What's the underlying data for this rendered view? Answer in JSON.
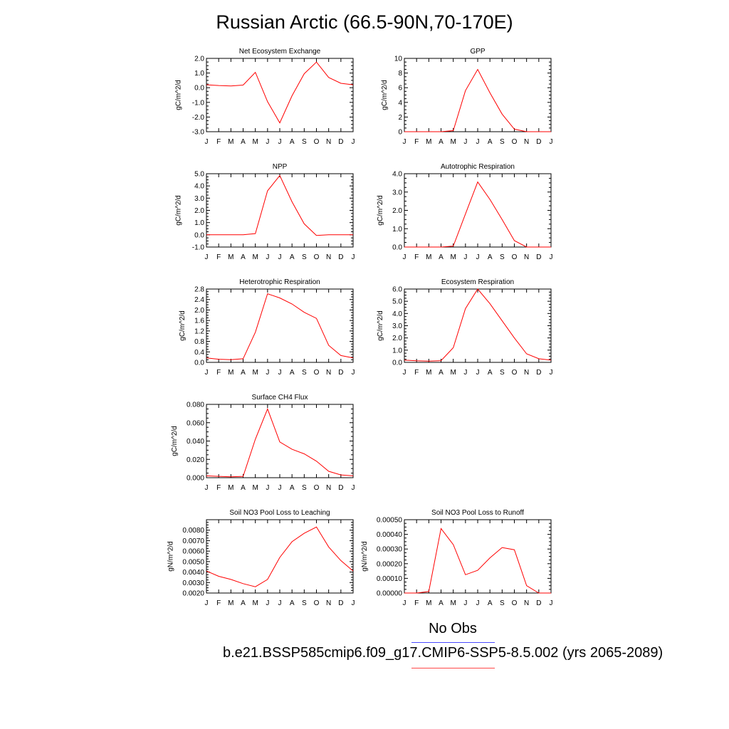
{
  "page_title": "Russian Arctic (66.5-90N,70-170E)",
  "legend": [
    {
      "label": "No Obs",
      "color": "#4a4aff"
    },
    {
      "label": "",
      "color": "#ff4a4a"
    }
  ],
  "case_label": "b.e21.BSSP585cmip6.f09_g17.CMIP6-SSP5-8.5.002 (yrs 2065-2089)",
  "series_color": "#ff0000",
  "chart_data": [
    {
      "type": "line",
      "title": "Net Ecosystem Exchange",
      "ylabel": "gC/m^2/d",
      "categories": [
        "J",
        "F",
        "M",
        "A",
        "M",
        "J",
        "J",
        "A",
        "S",
        "O",
        "N",
        "D",
        "J"
      ],
      "ylim": [
        -3.0,
        2.0
      ],
      "yticks": [
        "-3.0",
        "-2.0",
        "-1.0",
        "0.0",
        "1.0",
        "2.0"
      ],
      "values": [
        0.2,
        0.15,
        0.12,
        0.18,
        1.05,
        -0.95,
        -2.4,
        -0.55,
        0.95,
        1.75,
        0.7,
        0.3,
        0.2
      ]
    },
    {
      "type": "line",
      "title": "GPP",
      "ylabel": "gC/m^2/d",
      "categories": [
        "J",
        "F",
        "M",
        "A",
        "M",
        "J",
        "J",
        "A",
        "S",
        "O",
        "N",
        "D",
        "J"
      ],
      "ylim": [
        0,
        10
      ],
      "yticks": [
        "0",
        "2",
        "4",
        "6",
        "8",
        "10"
      ],
      "values": [
        0.0,
        0.0,
        0.0,
        0.0,
        0.15,
        5.6,
        8.5,
        5.3,
        2.4,
        0.35,
        0.0,
        0.0,
        0.0
      ]
    },
    {
      "type": "line",
      "title": "NPP",
      "ylabel": "gC/m^2/d",
      "categories": [
        "J",
        "F",
        "M",
        "A",
        "M",
        "J",
        "J",
        "A",
        "S",
        "O",
        "N",
        "D",
        "J"
      ],
      "ylim": [
        -1.0,
        5.0
      ],
      "yticks": [
        "-1.0",
        "0.0",
        "1.0",
        "2.0",
        "3.0",
        "4.0",
        "5.0"
      ],
      "values": [
        0.0,
        0.0,
        0.0,
        0.0,
        0.1,
        3.6,
        4.85,
        2.7,
        0.9,
        -0.05,
        0.0,
        0.0,
        0.0
      ]
    },
    {
      "type": "line",
      "title": "Autotrophic Respiration",
      "ylabel": "gC/m^2/d",
      "categories": [
        "J",
        "F",
        "M",
        "A",
        "M",
        "J",
        "J",
        "A",
        "S",
        "O",
        "N",
        "D",
        "J"
      ],
      "ylim": [
        0.0,
        4.0
      ],
      "yticks": [
        "0.0",
        "1.0",
        "2.0",
        "3.0",
        "4.0"
      ],
      "values": [
        0.0,
        0.0,
        0.0,
        0.0,
        0.05,
        1.8,
        3.55,
        2.6,
        1.5,
        0.35,
        0.0,
        0.0,
        0.0
      ]
    },
    {
      "type": "line",
      "title": "Heterotrophic Respiration",
      "ylabel": "gC/m^2/d",
      "categories": [
        "J",
        "F",
        "M",
        "A",
        "M",
        "J",
        "J",
        "A",
        "S",
        "O",
        "N",
        "D",
        "J"
      ],
      "ylim": [
        0.0,
        2.8
      ],
      "yticks": [
        "0.0",
        "0.4",
        "0.8",
        "1.2",
        "1.6",
        "2.0",
        "2.4",
        "2.8"
      ],
      "values": [
        0.17,
        0.12,
        0.1,
        0.14,
        1.15,
        2.62,
        2.46,
        2.23,
        1.91,
        1.68,
        0.65,
        0.26,
        0.17
      ]
    },
    {
      "type": "line",
      "title": "Ecosystem Respiration",
      "ylabel": "gC/m^2/d",
      "categories": [
        "J",
        "F",
        "M",
        "A",
        "M",
        "J",
        "J",
        "A",
        "S",
        "O",
        "N",
        "D",
        "J"
      ],
      "ylim": [
        0.0,
        6.0
      ],
      "yticks": [
        "0.0",
        "1.0",
        "2.0",
        "3.0",
        "4.0",
        "5.0",
        "6.0"
      ],
      "values": [
        0.18,
        0.13,
        0.1,
        0.14,
        1.2,
        4.4,
        6.0,
        4.8,
        3.4,
        2.0,
        0.7,
        0.3,
        0.18
      ]
    },
    {
      "type": "line",
      "title": "Surface CH4 Flux",
      "ylabel": "gC/m^2/d",
      "categories": [
        "J",
        "F",
        "M",
        "A",
        "M",
        "J",
        "J",
        "A",
        "S",
        "O",
        "N",
        "D",
        "J"
      ],
      "ylim": [
        0.0,
        0.08
      ],
      "yticks": [
        "0.000",
        "0.020",
        "0.040",
        "0.060",
        "0.080"
      ],
      "values": [
        0.002,
        0.0015,
        0.001,
        0.0015,
        0.042,
        0.075,
        0.039,
        0.031,
        0.026,
        0.018,
        0.007,
        0.003,
        0.002
      ]
    },
    {
      "type": "line",
      "title": "Soil NO3 Pool Loss to Leaching",
      "ylabel": "gN/m^2/d",
      "categories": [
        "J",
        "F",
        "M",
        "A",
        "M",
        "J",
        "J",
        "A",
        "S",
        "O",
        "N",
        "D",
        "J"
      ],
      "ylim": [
        0.002,
        0.009
      ],
      "yticks": [
        "0.0020",
        "0.0030",
        "0.0040",
        "0.0050",
        "0.0060",
        "0.0070",
        "0.0080"
      ],
      "values": [
        0.0041,
        0.0036,
        0.0033,
        0.0029,
        0.0026,
        0.0033,
        0.0054,
        0.0069,
        0.0077,
        0.0083,
        0.0064,
        0.0051,
        0.0041
      ]
    },
    {
      "type": "line",
      "title": "Soil NO3 Pool Loss to Runoff",
      "ylabel": "gN/m^2/d",
      "categories": [
        "J",
        "F",
        "M",
        "A",
        "M",
        "J",
        "J",
        "A",
        "S",
        "O",
        "N",
        "D",
        "J"
      ],
      "ylim": [
        0.0,
        0.0005
      ],
      "yticks": [
        "0.00000",
        "0.00010",
        "0.00020",
        "0.00030",
        "0.00040",
        "0.00050"
      ],
      "values": [
        0.0,
        0.0,
        1e-05,
        0.00044,
        0.00033,
        0.000125,
        0.000155,
        0.00024,
        0.00031,
        0.000295,
        5e-05,
        0.0,
        0.0
      ]
    }
  ]
}
